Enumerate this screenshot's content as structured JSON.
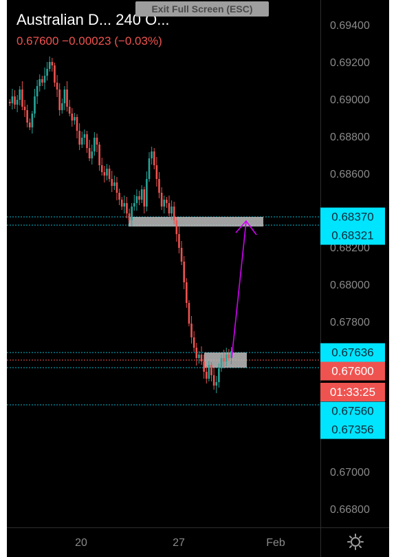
{
  "header": {
    "title": "Australian D...   240   O...",
    "price_line": "0.67600   −0.00023 (−0.03%)"
  },
  "exit_fullscreen_label": "Exit Full Screen (ESC)",
  "price_axis": {
    "ticks": [
      "0.69400",
      "0.69200",
      "0.69000",
      "0.68800",
      "0.68600",
      "0.68200",
      "0.68000",
      "0.67800",
      "0.67000",
      "0.66800"
    ]
  },
  "price_tags": {
    "level_1": "0.68370",
    "level_2": "0.68321",
    "level_3": "0.67636",
    "current_price": "0.67600",
    "countdown": "01:33:25",
    "level_4": "0.67560",
    "level_5": "0.67356"
  },
  "date_axis": {
    "labels": [
      "20",
      "27",
      "Feb"
    ]
  },
  "icons": {
    "settings": "gear-icon"
  },
  "colors": {
    "background": "#000000",
    "up_candle": "#26a69a",
    "down_candle": "#ef5350",
    "horizontal_line": "#00bcd4",
    "current_price_line": "#ef5350",
    "tag_background": "#00e5ff",
    "zone_fill": "#bdbdbd",
    "arrow": "#d500f9"
  }
}
